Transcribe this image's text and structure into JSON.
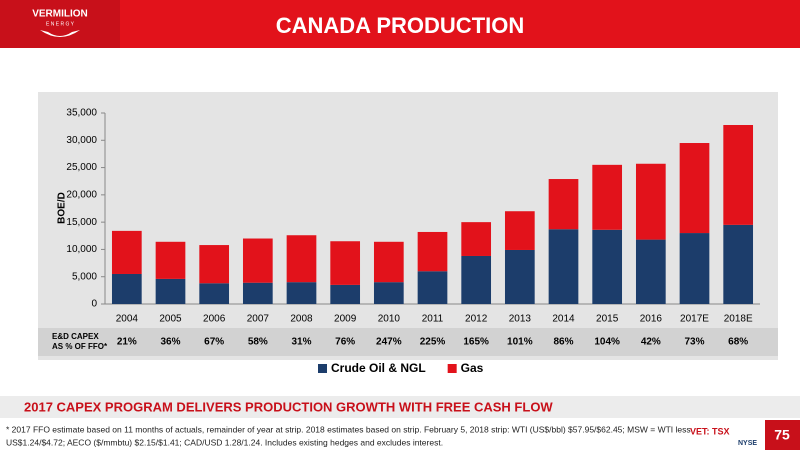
{
  "header": {
    "logo": [
      "VERMILION",
      "E N E R G Y"
    ],
    "title": "CANADA PRODUCTION"
  },
  "chart_data": {
    "type": "bar",
    "stacked": true,
    "ylabel": "BOE/D",
    "categories": [
      "2004",
      "2005",
      "2006",
      "2007",
      "2008",
      "2009",
      "2010",
      "2011",
      "2012",
      "2013",
      "2014",
      "2015",
      "2016",
      "2017E",
      "2018E"
    ],
    "series": [
      {
        "name": "Crude Oil & NGL",
        "color": "#1c3d6b",
        "values": [
          5500,
          4600,
          3800,
          3900,
          4000,
          3500,
          4000,
          6000,
          8800,
          9900,
          13700,
          13600,
          11800,
          13000,
          14500
        ]
      },
      {
        "name": "Gas",
        "color": "#e2121b",
        "values": [
          7900,
          6800,
          7000,
          8100,
          8600,
          8000,
          7400,
          7200,
          6200,
          7100,
          9200,
          11900,
          13900,
          16500,
          18300
        ]
      }
    ],
    "ylim": [
      0,
      35000
    ],
    "yticks": [
      0,
      {
        "value": 5000,
        "label": "5,000"
      },
      {
        "value": 10000,
        "label": "10,000"
      },
      {
        "value": 15000,
        "label": "15,000"
      },
      {
        "value": 20000,
        "label": "20,000"
      },
      {
        "value": 25000,
        "label": "25,000"
      },
      {
        "value": 30000,
        "label": "30,000"
      },
      {
        "value": 35000,
        "label": "35,000"
      }
    ],
    "grid": false,
    "legend": "bottom"
  },
  "capex_row": {
    "label": [
      "E&D CAPEX",
      "AS % OF FFO*"
    ],
    "values": [
      "21%",
      "36%",
      "67%",
      "58%",
      "31%",
      "76%",
      "247%",
      "225%",
      "165%",
      "101%",
      "86%",
      "104%",
      "42%",
      "73%",
      "68%"
    ]
  },
  "banner": "2017 CAPEX PROGRAM DELIVERS PRODUCTION GROWTH WITH FREE CASH FLOW",
  "footnote": [
    "* 2017 FFO estimate based on 11 months of actuals, remainder of year at strip. 2018 estimates based on strip. February 5, 2018 strip:  WTI (US$/bbl) $57.95/$62.45; MSW = WTI less",
    "US$1.24/$4.72; AECO ($/mmbtu) $2.15/$1.41; CAD/USD 1.28/1.24.  Includes existing hedges and excludes interest."
  ],
  "footer": {
    "exchange1": "VET: TSX",
    "exchange2": "NYSE",
    "page": "75"
  }
}
